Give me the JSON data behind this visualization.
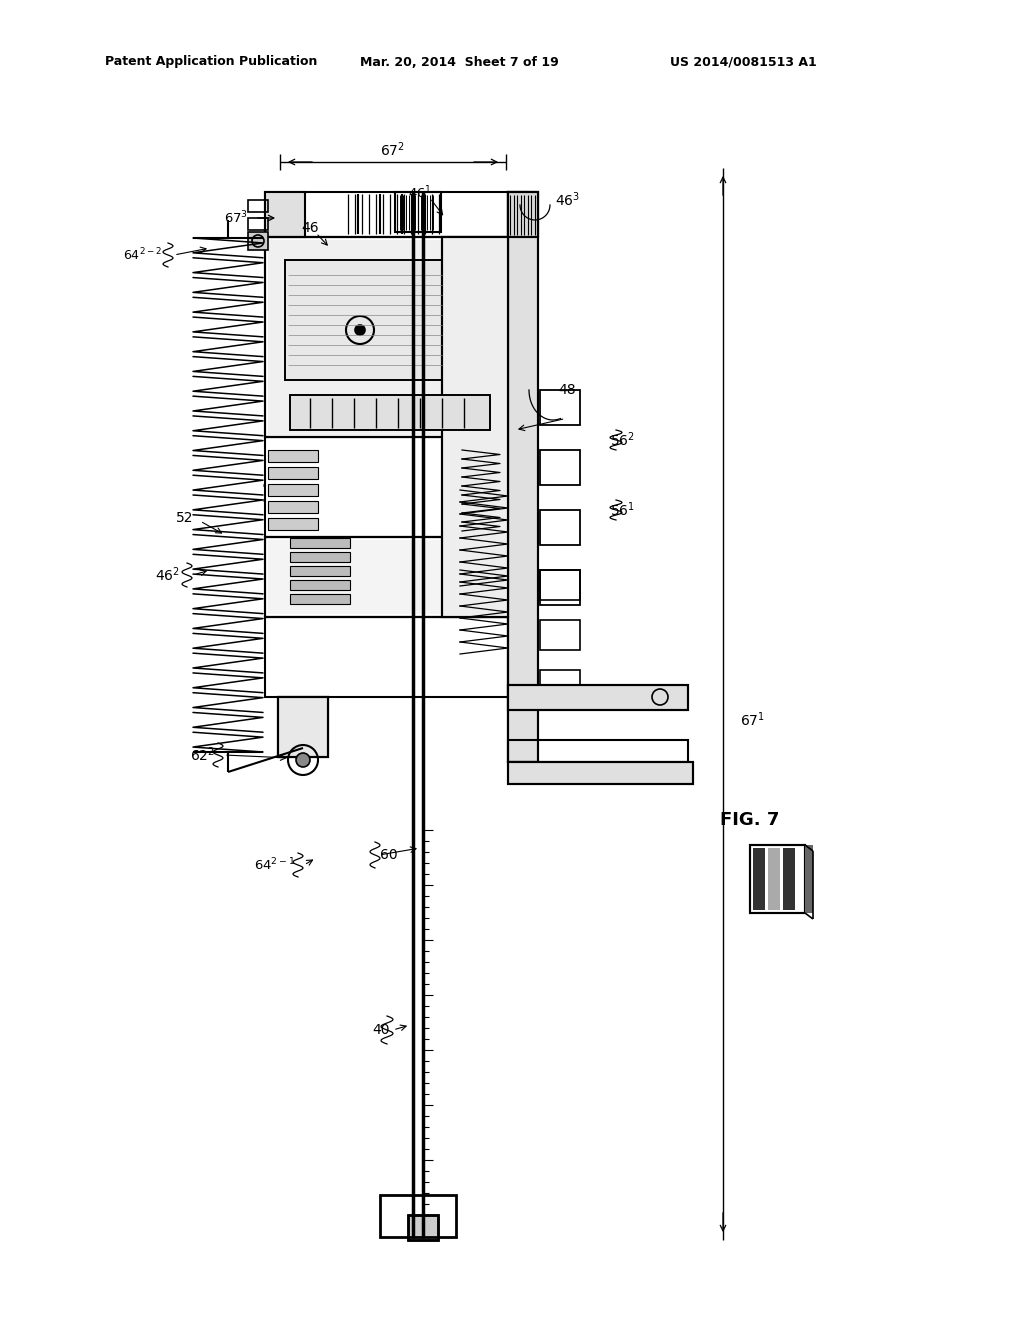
{
  "bg_color": "#ffffff",
  "header_left": "Patent Application Publication",
  "header_mid": "Mar. 20, 2014  Sheet 7 of 19",
  "header_right": "US 2014/0081513 A1",
  "fig_label": "FIG. 7"
}
